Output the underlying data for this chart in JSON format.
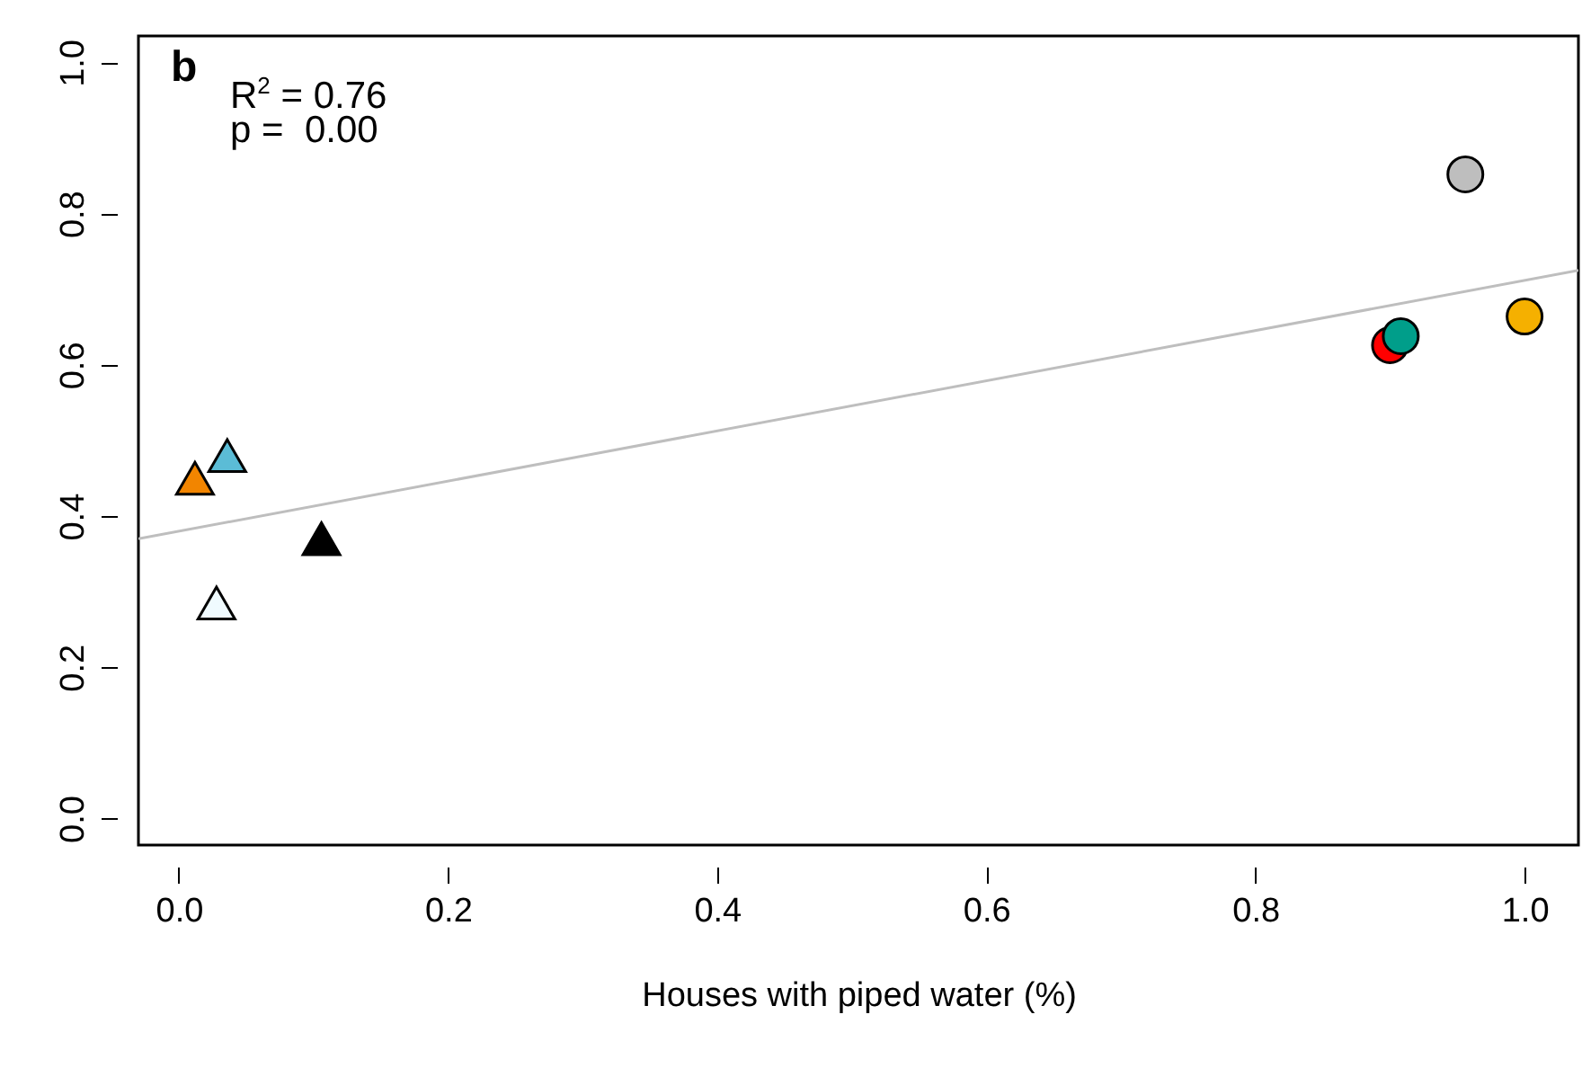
{
  "chart_data": {
    "type": "scatter",
    "xlabel": "Houses with piped water (%)",
    "xlim": [
      -0.03,
      1.04
    ],
    "xticks": [
      {
        "value": 0,
        "label": "0.0"
      },
      0.2,
      0.4,
      0.6,
      0.8,
      {
        "value": 1,
        "label": "1.0"
      }
    ],
    "ylim": [
      -0.035,
      1.035
    ],
    "yticks": [
      {
        "value": 0,
        "label": "0.0"
      },
      0.2,
      0.4,
      0.6,
      0.8,
      {
        "value": 1,
        "label": "1.0"
      }
    ],
    "annotations": [
      "b",
      "R$^{2}$ = 0.76",
      "p =  0.00"
    ],
    "series": [
      {
        "type": "line",
        "color": "#bebebe",
        "x": [
          -0.03,
          1.04
        ],
        "values": [
          0.37,
          0.725
        ]
      },
      {
        "type": "scatter",
        "marker": "triangle",
        "x": [
          0.012,
          0.036,
          0.106,
          0.028
        ],
        "values": [
          0.45,
          0.48,
          0.37,
          0.285
        ],
        "colors": [
          "#f28500",
          "#5bbcd6",
          "#000000",
          "#f0fbff"
        ]
      },
      {
        "type": "scatter",
        "marker": "circle",
        "x": [
          0.9,
          0.908,
          0.956,
          1.0
        ],
        "values": [
          0.626,
          0.638,
          0.852,
          0.664
        ],
        "colors": [
          "#ff0000",
          "#009e8a",
          "#bebebe",
          "#f5b000"
        ]
      }
    ]
  }
}
